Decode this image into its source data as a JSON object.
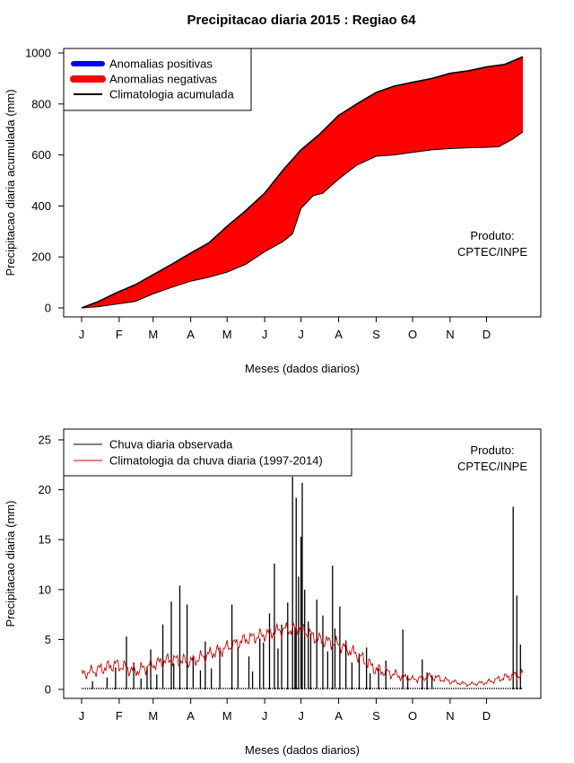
{
  "title": "Precipitacao diaria 2015 : Regiao 64",
  "chart_data": [
    {
      "type": "area",
      "ylabel": "Precipitacao diaria acumulada (mm)",
      "xlabel": "Meses (dados diarios)",
      "xlim": [
        1,
        365
      ],
      "ylim": [
        0,
        1000
      ],
      "yticks": [
        0,
        200,
        400,
        600,
        800,
        1000
      ],
      "month_labels": [
        "J",
        "F",
        "M",
        "A",
        "M",
        "J",
        "J",
        "A",
        "S",
        "O",
        "N",
        "D"
      ],
      "month_days": [
        1,
        32,
        60,
        91,
        121,
        152,
        182,
        213,
        244,
        274,
        305,
        335
      ],
      "legend": {
        "position": "top-left",
        "entries": [
          {
            "label": "Anomalias positivas",
            "color": "#0000ff"
          },
          {
            "label": "Anomalias negativas",
            "color": "#ff0000"
          },
          {
            "label": "Climatologia acumulada",
            "color": "#000000"
          }
        ]
      },
      "annotation": [
        "Produto:",
        "CPTEC/INPE"
      ],
      "series": [
        {
          "name": "Climatologia acumulada",
          "x": [
            1,
            15,
            30,
            45,
            60,
            75,
            91,
            106,
            121,
            136,
            152,
            167,
            182,
            197,
            213,
            228,
            244,
            259,
            274,
            290,
            305,
            320,
            335,
            350,
            365
          ],
          "values": [
            0,
            25,
            60,
            90,
            130,
            170,
            215,
            255,
            320,
            380,
            450,
            540,
            620,
            680,
            755,
            800,
            845,
            870,
            885,
            900,
            920,
            930,
            945,
            955,
            985
          ]
        },
        {
          "name": "Chuva acumulada observada",
          "x": [
            1,
            15,
            30,
            45,
            60,
            75,
            91,
            106,
            121,
            136,
            152,
            167,
            175,
            182,
            192,
            200,
            213,
            228,
            244,
            259,
            274,
            290,
            305,
            320,
            335,
            345,
            356,
            365
          ],
          "values": [
            0,
            5,
            15,
            25,
            55,
            80,
            105,
            120,
            140,
            170,
            220,
            260,
            290,
            390,
            440,
            450,
            505,
            560,
            595,
            600,
            610,
            620,
            625,
            628,
            630,
            632,
            660,
            690
          ]
        }
      ]
    },
    {
      "type": "bar",
      "ylabel": "Precipitacao diaria (mm)",
      "xlabel": "Meses (dados diarios)",
      "xlim": [
        1,
        365
      ],
      "ylim": [
        0,
        25
      ],
      "yticks": [
        0,
        5,
        10,
        15,
        20,
        25
      ],
      "month_labels": [
        "J",
        "F",
        "M",
        "A",
        "M",
        "J",
        "J",
        "A",
        "S",
        "O",
        "N",
        "D"
      ],
      "month_days": [
        1,
        32,
        60,
        91,
        121,
        152,
        182,
        213,
        244,
        274,
        305,
        335
      ],
      "legend": {
        "position": "top-left",
        "entries": [
          {
            "label": "Chuva diaria observada",
            "color": "#000000"
          },
          {
            "label": "Climatologia da chuva diaria (1997-2014)",
            "color": "#cc0000"
          }
        ]
      },
      "annotation": [
        "Produto:",
        "CPTEC/INPE"
      ],
      "series": [
        {
          "name": "Chuva diaria observada",
          "x": [
            10,
            22,
            29,
            38,
            44,
            50,
            55,
            58,
            63,
            68,
            75,
            77,
            82,
            88,
            93,
            99,
            103,
            108,
            115,
            125,
            130,
            139,
            142,
            148,
            151,
            156,
            160,
            163,
            166,
            171,
            175,
            177,
            178,
            180,
            182,
            183,
            185,
            188,
            190,
            195,
            200,
            204,
            208,
            210,
            214,
            219,
            224,
            230,
            236,
            239,
            246,
            252,
            266,
            270,
            282,
            286,
            290,
            357,
            360,
            363
          ],
          "values": [
            0.8,
            1.2,
            2.2,
            5.3,
            2.7,
            1.1,
            2.3,
            4.0,
            1.5,
            6.5,
            8.8,
            2.6,
            10.4,
            8.5,
            3.2,
            1.9,
            4.8,
            2.1,
            3.9,
            8.5,
            4.2,
            3.3,
            1.8,
            5.1,
            4.7,
            7.6,
            12.6,
            4.1,
            6.5,
            8.7,
            21.3,
            6.2,
            19.2,
            11.3,
            15.3,
            20.7,
            10.0,
            6.8,
            5.6,
            9.0,
            7.4,
            3.8,
            12.4,
            6.1,
            8.3,
            4.9,
            2.7,
            3.6,
            4.2,
            1.6,
            2.1,
            2.9,
            6.0,
            1.4,
            3.0,
            1.7,
            1.3,
            18.3,
            9.4,
            4.5
          ]
        },
        {
          "name": "Climatologia da chuva diaria (1997-2014)",
          "x": [
            1,
            15,
            30,
            45,
            60,
            75,
            91,
            106,
            121,
            136,
            152,
            167,
            182,
            197,
            213,
            228,
            244,
            259,
            274,
            290,
            305,
            320,
            335,
            350,
            365
          ],
          "values": [
            1.5,
            2.0,
            2.5,
            1.8,
            2.5,
            3.0,
            2.8,
            3.5,
            4.2,
            5.0,
            5.5,
            6.0,
            6.0,
            5.0,
            4.5,
            3.5,
            2.0,
            1.5,
            1.0,
            1.3,
            0.8,
            0.5,
            0.7,
            1.2,
            1.5
          ]
        }
      ]
    }
  ]
}
